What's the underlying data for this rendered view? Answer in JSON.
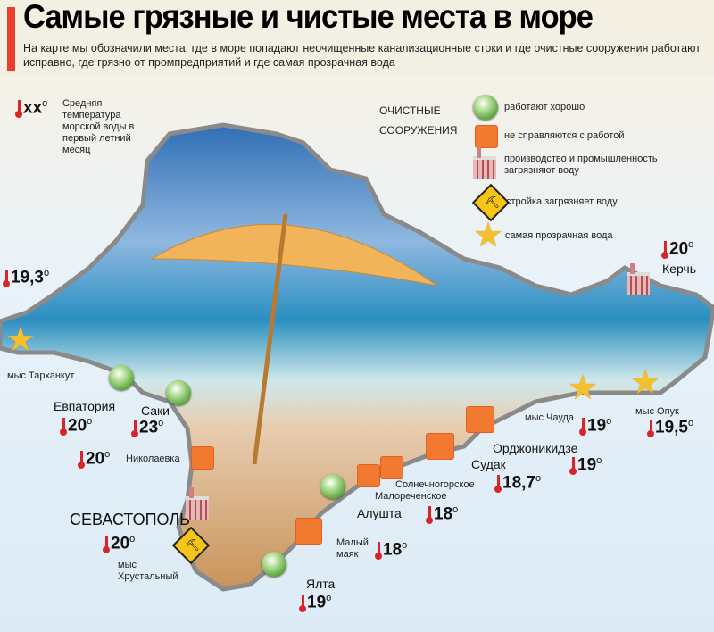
{
  "header": {
    "title": "Самые грязные и чистые места в море",
    "subtitle": "На карте мы обозначили места, где в море попадают неочищенные канализационные стоки и где очистные сооружения работают исправно, где грязно от промпредприятий и где самая прозрачная вода"
  },
  "temp_legend": {
    "symbol": "xx",
    "text": "Средняя температура морской воды в первый летний месяц"
  },
  "legend": {
    "heading": "ОЧИСТНЫЕ СООРУЖЕНИЯ",
    "items": [
      {
        "icon": "green-circle",
        "label": "работают хорошо"
      },
      {
        "icon": "orange-square",
        "label": "не справляются с работой"
      },
      {
        "icon": "factory",
        "label": "производство и промышленность загрязняют воду"
      },
      {
        "icon": "construction-sign",
        "label": "стройка загрязняет воду"
      },
      {
        "icon": "star",
        "label": "самая прозрачная вода"
      }
    ]
  },
  "places": {
    "tarkhankut": "мыс Тарханкут",
    "evpatoria": "Евпатория",
    "saki": "Саки",
    "nikolaevka": "Николаевка",
    "sevastopol": "СЕВАСТОПОЛЬ",
    "khrustalny": "мыс Хрустальный",
    "yalta": "Ялта",
    "maly_mayak": "Малый маяк",
    "alushta": "Алушта",
    "solnechnogorskoe": "Солнечногорское",
    "malorechenskoe": "Малореченское",
    "sudak": "Судак",
    "ordzhonikidze": "Орджоникидзе",
    "chauda": "мыс Чауда",
    "opuk": "мыс Опук",
    "kerch": "Керчь"
  },
  "temps": {
    "west": "19,3",
    "kerch": "20",
    "evpatoria": "20",
    "saki": "23",
    "nikolaevka": "20",
    "sevastopol": "20",
    "yalta": "19",
    "maly_mayak": "18",
    "alushta": "18",
    "sudak": "18,7",
    "ordzhonikidze": "19",
    "chauda": "19",
    "opuk": "19,5"
  },
  "degree": "o",
  "colors": {
    "accent_red": "#e8402c",
    "good": "#4c9a2e",
    "bad": "#f27a30",
    "star": "#f4c030",
    "sea": "#dcebf6"
  }
}
